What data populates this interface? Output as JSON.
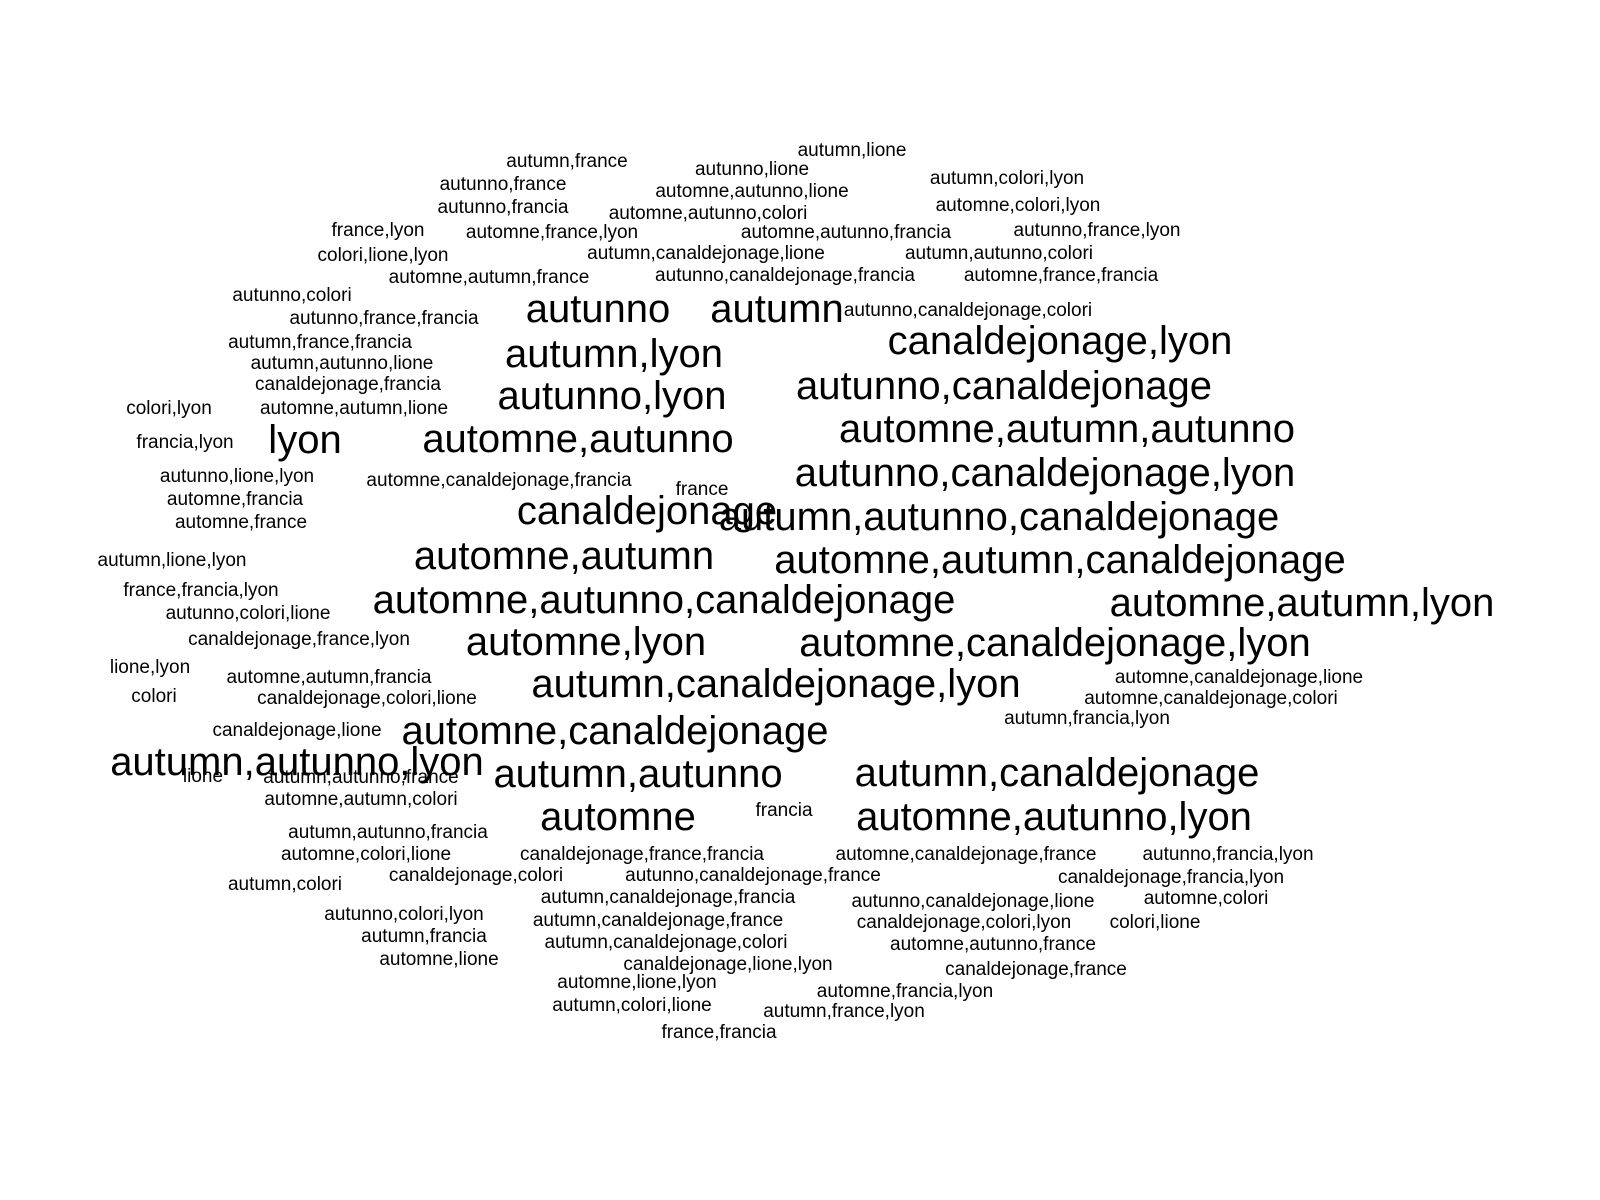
{
  "words": [
    {
      "text": "autumn,lione",
      "size": "s"
    },
    {
      "text": "autumn,france",
      "size": "s"
    },
    {
      "text": "autunno,lione",
      "size": "s"
    },
    {
      "text": "autunno,france",
      "size": "s"
    },
    {
      "text": "automne,autunno,lione",
      "size": "s"
    },
    {
      "text": "autumn,colori,lyon",
      "size": "s"
    },
    {
      "text": "autunno,francia",
      "size": "s"
    },
    {
      "text": "automne,colori,lyon",
      "size": "s"
    },
    {
      "text": "automne,autunno,colori",
      "size": "s"
    },
    {
      "text": "france,lyon",
      "size": "s"
    },
    {
      "text": "automne,france,lyon",
      "size": "s"
    },
    {
      "text": "automne,autunno,francia",
      "size": "s"
    },
    {
      "text": "autunno,france,lyon",
      "size": "s"
    },
    {
      "text": "autumn,canaldejonage,lione",
      "size": "s"
    },
    {
      "text": "colori,lione,lyon",
      "size": "s"
    },
    {
      "text": "autumn,autunno,colori",
      "size": "s"
    },
    {
      "text": "autunno,canaldejonage,francia",
      "size": "s"
    },
    {
      "text": "automne,autumn,france",
      "size": "s"
    },
    {
      "text": "automne,france,francia",
      "size": "s"
    },
    {
      "text": "autunno,colori",
      "size": "s"
    },
    {
      "text": "autunno",
      "size": "l"
    },
    {
      "text": "autumn",
      "size": "l"
    },
    {
      "text": "autunno,canaldejonage,colori",
      "size": "s"
    },
    {
      "text": "autunno,france,francia",
      "size": "s"
    },
    {
      "text": "autumn,france,francia",
      "size": "s"
    },
    {
      "text": "canaldejonage,lyon",
      "size": "l"
    },
    {
      "text": "autumn,lyon",
      "size": "l"
    },
    {
      "text": "autumn,autunno,lione",
      "size": "s"
    },
    {
      "text": "canaldejonage,francia",
      "size": "s"
    },
    {
      "text": "autunno,canaldejonage",
      "size": "l"
    },
    {
      "text": "colori,lyon",
      "size": "s"
    },
    {
      "text": "automne,autumn,lione",
      "size": "s"
    },
    {
      "text": "autunno,lyon",
      "size": "l"
    },
    {
      "text": "automne,autumn,autunno",
      "size": "l"
    },
    {
      "text": "francia,lyon",
      "size": "s"
    },
    {
      "text": "lyon",
      "size": "l"
    },
    {
      "text": "automne,autunno",
      "size": "l"
    },
    {
      "text": "autunno,canaldejonage,lyon",
      "size": "l"
    },
    {
      "text": "autunno,lione,lyon",
      "size": "s"
    },
    {
      "text": "automne,canaldejonage,francia",
      "size": "s"
    },
    {
      "text": "france",
      "size": "s"
    },
    {
      "text": "automne,francia",
      "size": "s"
    },
    {
      "text": "canaldejonage",
      "size": "l"
    },
    {
      "text": "autumn,autunno,canaldejonage",
      "size": "l"
    },
    {
      "text": "automne,france",
      "size": "s"
    },
    {
      "text": "autumn,lione,lyon",
      "size": "s"
    },
    {
      "text": "automne,autumn",
      "size": "l"
    },
    {
      "text": "automne,autumn,canaldejonage",
      "size": "l"
    },
    {
      "text": "france,francia,lyon",
      "size": "s"
    },
    {
      "text": "automne,autunno,canaldejonage",
      "size": "l"
    },
    {
      "text": "automne,autumn,lyon",
      "size": "l"
    },
    {
      "text": "autunno,colori,lione",
      "size": "s"
    },
    {
      "text": "canaldejonage,france,lyon",
      "size": "s"
    },
    {
      "text": "automne,lyon",
      "size": "l"
    },
    {
      "text": "automne,canaldejonage,lyon",
      "size": "l"
    },
    {
      "text": "lione,lyon",
      "size": "s"
    },
    {
      "text": "automne,autumn,francia",
      "size": "s"
    },
    {
      "text": "automne,canaldejonage,lione",
      "size": "s"
    },
    {
      "text": "autumn,canaldejonage,lyon",
      "size": "l"
    },
    {
      "text": "colori",
      "size": "s"
    },
    {
      "text": "canaldejonage,colori,lione",
      "size": "s"
    },
    {
      "text": "automne,canaldejonage,colori",
      "size": "s"
    },
    {
      "text": "canaldejonage,lione",
      "size": "s"
    },
    {
      "text": "autumn,autunno,lyon",
      "size": "l"
    },
    {
      "text": "automne,canaldejonage",
      "size": "l"
    },
    {
      "text": "autumn,francia,lyon",
      "size": "s"
    },
    {
      "text": "lione",
      "size": "s"
    },
    {
      "text": "autumn,autunno,france",
      "size": "s"
    },
    {
      "text": "autumn,autunno",
      "size": "l"
    },
    {
      "text": "autumn,canaldejonage",
      "size": "l"
    },
    {
      "text": "automne,autumn,colori",
      "size": "s"
    },
    {
      "text": "francia",
      "size": "s"
    },
    {
      "text": "automne",
      "size": "l"
    },
    {
      "text": "automne,autunno,lyon",
      "size": "l"
    },
    {
      "text": "autumn,autunno,francia",
      "size": "s"
    },
    {
      "text": "automne,colori,lione",
      "size": "s"
    },
    {
      "text": "canaldejonage,france,francia",
      "size": "s"
    },
    {
      "text": "automne,canaldejonage,france",
      "size": "s"
    },
    {
      "text": "autunno,francia,lyon",
      "size": "s"
    },
    {
      "text": "canaldejonage,colori",
      "size": "s"
    },
    {
      "text": "autunno,canaldejonage,france",
      "size": "s"
    },
    {
      "text": "canaldejonage,francia,lyon",
      "size": "s"
    },
    {
      "text": "autumn,colori",
      "size": "s"
    },
    {
      "text": "autumn,canaldejonage,francia",
      "size": "s"
    },
    {
      "text": "autunno,canaldejonage,lione",
      "size": "s"
    },
    {
      "text": "automne,colori",
      "size": "s"
    },
    {
      "text": "autunno,colori,lyon",
      "size": "s"
    },
    {
      "text": "autumn,canaldejonage,france",
      "size": "s"
    },
    {
      "text": "canaldejonage,colori,lyon",
      "size": "s"
    },
    {
      "text": "colori,lione",
      "size": "s"
    },
    {
      "text": "autumn,francia",
      "size": "s"
    },
    {
      "text": "autumn,canaldejonage,colori",
      "size": "s"
    },
    {
      "text": "automne,autunno,france",
      "size": "s"
    },
    {
      "text": "automne,lione",
      "size": "s"
    },
    {
      "text": "canaldejonage,lione,lyon",
      "size": "s"
    },
    {
      "text": "canaldejonage,france",
      "size": "s"
    },
    {
      "text": "automne,lione,lyon",
      "size": "s"
    },
    {
      "text": "automne,francia,lyon",
      "size": "s"
    },
    {
      "text": "autumn,colori,lione",
      "size": "s"
    },
    {
      "text": "autumn,france,lyon",
      "size": "s"
    },
    {
      "text": "france,francia",
      "size": "s"
    }
  ]
}
